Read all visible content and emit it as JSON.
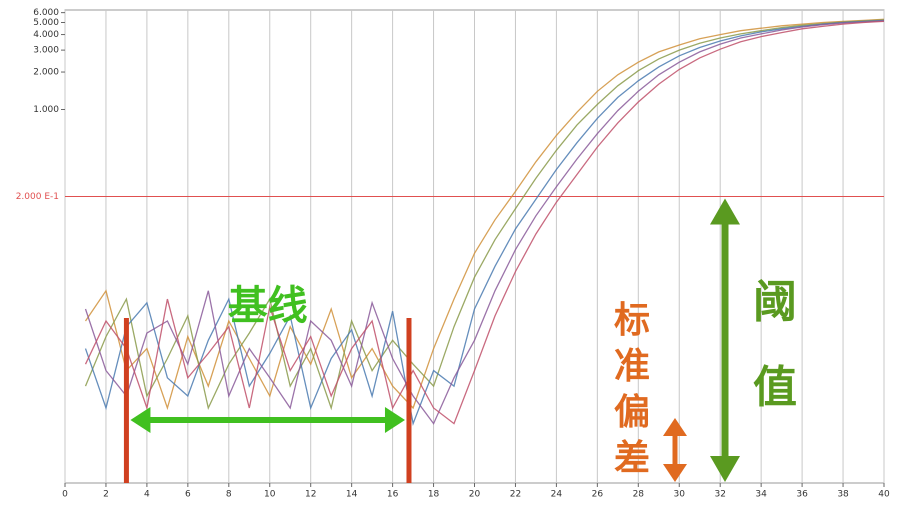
{
  "chart_data": {
    "type": "line",
    "x": [
      1,
      2,
      3,
      4,
      5,
      6,
      7,
      8,
      9,
      10,
      11,
      12,
      13,
      14,
      15,
      16,
      17,
      18,
      19,
      20,
      21,
      22,
      23,
      24,
      25,
      26,
      27,
      28,
      29,
      30,
      31,
      32,
      33,
      34,
      35,
      36,
      37,
      38,
      39,
      40
    ],
    "series": [
      {
        "color": "#d0903a",
        "values": [
          0.02,
          0.035,
          0.008,
          0.012,
          0.004,
          0.015,
          0.006,
          0.02,
          0.01,
          0.005,
          0.018,
          0.009,
          0.025,
          0.007,
          0.012,
          0.006,
          0.004,
          0.012,
          0.03,
          0.07,
          0.13,
          0.22,
          0.38,
          0.62,
          0.95,
          1.4,
          1.9,
          2.4,
          2.9,
          3.3,
          3.7,
          4.0,
          4.3,
          4.5,
          4.7,
          4.85,
          5.0,
          5.1,
          5.2,
          5.3
        ]
      },
      {
        "color": "#8a9a4a",
        "values": [
          0.006,
          0.015,
          0.03,
          0.005,
          0.01,
          0.022,
          0.004,
          0.009,
          0.016,
          0.03,
          0.006,
          0.012,
          0.004,
          0.02,
          0.008,
          0.014,
          0.009,
          0.006,
          0.018,
          0.045,
          0.09,
          0.16,
          0.28,
          0.47,
          0.75,
          1.1,
          1.55,
          2.05,
          2.55,
          3.0,
          3.4,
          3.75,
          4.05,
          4.3,
          4.55,
          4.75,
          4.9,
          5.05,
          5.15,
          5.25
        ]
      },
      {
        "color": "#4a7ab0",
        "values": [
          0.012,
          0.004,
          0.018,
          0.028,
          0.007,
          0.005,
          0.014,
          0.03,
          0.006,
          0.011,
          0.022,
          0.004,
          0.01,
          0.017,
          0.005,
          0.024,
          0.003,
          0.008,
          0.006,
          0.025,
          0.055,
          0.11,
          0.19,
          0.33,
          0.54,
          0.85,
          1.25,
          1.7,
          2.2,
          2.7,
          3.15,
          3.55,
          3.9,
          4.2,
          4.45,
          4.65,
          4.85,
          5.0,
          5.1,
          5.2
        ]
      },
      {
        "color": "#8a5a9a",
        "values": [
          0.025,
          0.008,
          0.005,
          0.016,
          0.02,
          0.009,
          0.035,
          0.005,
          0.012,
          0.007,
          0.004,
          0.02,
          0.014,
          0.006,
          0.028,
          0.01,
          0.005,
          0.003,
          0.007,
          0.014,
          0.035,
          0.075,
          0.14,
          0.24,
          0.4,
          0.64,
          0.98,
          1.4,
          1.9,
          2.4,
          2.9,
          3.35,
          3.75,
          4.05,
          4.35,
          4.6,
          4.8,
          4.95,
          5.05,
          5.15
        ]
      },
      {
        "color": "#c0506a",
        "values": [
          0.009,
          0.02,
          0.012,
          0.004,
          0.03,
          0.007,
          0.011,
          0.018,
          0.004,
          0.026,
          0.008,
          0.015,
          0.005,
          0.012,
          0.02,
          0.004,
          0.008,
          0.004,
          0.003,
          0.008,
          0.022,
          0.05,
          0.1,
          0.18,
          0.3,
          0.5,
          0.78,
          1.15,
          1.6,
          2.1,
          2.6,
          3.05,
          3.5,
          3.85,
          4.15,
          4.45,
          4.65,
          4.85,
          5.0,
          5.1
        ]
      }
    ],
    "xlim": [
      0,
      40
    ],
    "xticks": [
      0,
      2,
      4,
      6,
      8,
      10,
      12,
      14,
      16,
      18,
      20,
      22,
      24,
      26,
      28,
      30,
      32,
      34,
      36,
      38,
      40
    ],
    "ylim": [
      0.001,
      6.3
    ],
    "log_y": true,
    "yticks": [
      {
        "value": 6,
        "label": "6.000"
      },
      {
        "value": 5,
        "label": "5.000"
      },
      {
        "value": 4,
        "label": "4.000"
      },
      {
        "value": 3,
        "label": "3.000"
      },
      {
        "value": 2,
        "label": "2.000"
      },
      {
        "value": 1,
        "label": "1.000"
      }
    ],
    "threshold": {
      "value": 0.2,
      "label": "2.000 E-1",
      "color": "#e05050"
    },
    "baseline": {
      "start": 3,
      "end": 16.8,
      "label": "基线",
      "marker_color": "#d04020",
      "arrow_color": "#40c020"
    },
    "std_dev_label": {
      "text": "标准偏差",
      "color": "#e06a20"
    },
    "threshold_label": {
      "text": "阈值",
      "color": "#5a9a20"
    },
    "grid": true
  }
}
